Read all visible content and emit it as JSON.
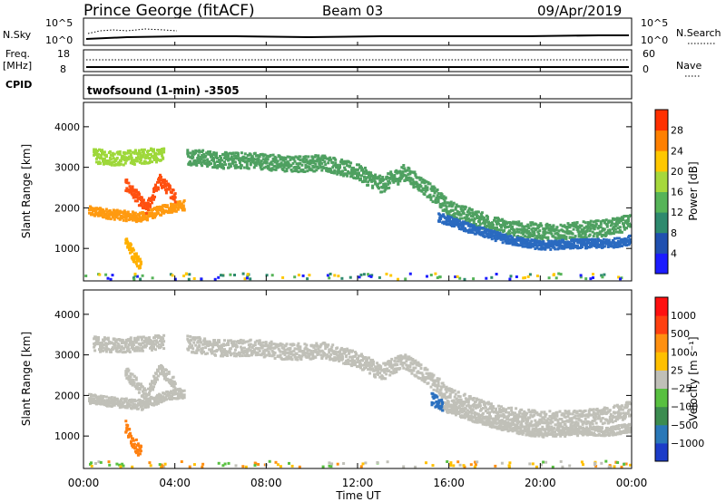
{
  "header": {
    "station": "Prince George (fitACF)",
    "beam": "Beam 03",
    "date": "09/Apr/2019"
  },
  "top_panels": {
    "nsky_label": "N.Sky",
    "nsky_top": "10^5",
    "nsky_bottom": "10^0",
    "nsearch_label": "N.Search",
    "nsearch_top": "10^5",
    "nsearch_bottom": "10^0",
    "freq_label": "Freq.",
    "freq_unit": "[MHz]",
    "freq_top": "18",
    "freq_bottom": "8",
    "nave_label": "Nave",
    "nave_top": "60",
    "nave_bottom": "0",
    "cpid_label": "CPID",
    "cpid_text": "twofsound (1-min)  -3505"
  },
  "colors": {
    "outline": "#000000",
    "velocity_ground": "#c0c0b8"
  },
  "chart_data": [
    {
      "type": "heatmap",
      "name": "power",
      "ylabel": "Slant Range [km]",
      "yticks": [
        "1000",
        "2000",
        "3000",
        "4000"
      ],
      "ylim": [
        200,
        4600
      ],
      "xlim": [
        0,
        24
      ],
      "colorbar_label": "Power [dB]",
      "colorbar_ticks": [
        "4",
        "8",
        "12",
        "16",
        "20",
        "24",
        "28"
      ],
      "colorbar_colors": [
        "#1c1cff",
        "#2050b0",
        "#2e8a6e",
        "#56b458",
        "#a6d83c",
        "#ffc800",
        "#ff8000",
        "#ff3000"
      ],
      "bands": [
        {
          "x": [
            0.2,
            1.5,
            2.5,
            3.5,
            4.4
          ],
          "y": [
            1950,
            1850,
            1800,
            2000,
            2100
          ],
          "width": 120,
          "level": "#ff9a10"
        },
        {
          "x": [
            0.4,
            1.5,
            2.5,
            3.5
          ],
          "y": [
            3300,
            3250,
            3300,
            3350
          ],
          "width": 180,
          "level": "#9ed83a"
        },
        {
          "x": [
            1.8,
            2.3,
            2.7,
            3.3,
            4.0
          ],
          "y": [
            2600,
            2300,
            2000,
            2700,
            2300
          ],
          "width": 150,
          "level": "#ff5010"
        },
        {
          "x": [
            1.8,
            2.1,
            2.5
          ],
          "y": [
            1250,
            900,
            600
          ],
          "width": 160,
          "level": "#ffb000"
        },
        {
          "x": [
            4.5,
            6.0,
            7.5,
            9.0,
            10.5,
            12.0,
            13.0,
            14.0,
            15.0,
            16.0,
            17.0,
            18.0,
            19.0,
            20.0,
            21.0,
            22.0,
            23.0,
            24.0
          ],
          "y": [
            3300,
            3200,
            3200,
            3100,
            3150,
            2900,
            2600,
            2900,
            2500,
            2000,
            1800,
            1600,
            1500,
            1450,
            1450,
            1500,
            1550,
            1700
          ],
          "width": 200,
          "level": "#4ea060"
        },
        {
          "x": [
            15.5,
            17.0,
            18.5,
            20.0,
            21.5,
            23.0,
            24.0
          ],
          "y": [
            1800,
            1500,
            1250,
            1100,
            1150,
            1150,
            1250
          ],
          "width": 110,
          "level": "#2a6ac0"
        }
      ],
      "noise_floor_km": 300
    },
    {
      "type": "heatmap",
      "name": "velocity",
      "ylabel": "Slant Range [km]",
      "yticks": [
        "1000",
        "2000",
        "3000",
        "4000"
      ],
      "ylim": [
        200,
        4600
      ],
      "xlim": [
        0,
        24
      ],
      "xlabel": "Time UT",
      "xticks": [
        "00:00",
        "04:00",
        "08:00",
        "12:00",
        "16:00",
        "20:00",
        "00:00"
      ],
      "colorbar_label": "Velocity [m s⁻¹]",
      "colorbar_ticks": [
        "1000",
        "500",
        "100",
        "25",
        "−25",
        "−100",
        "−500",
        "−1000"
      ],
      "colorbar_colors": [
        "#1c3cc8",
        "#2a78b8",
        "#3c8c50",
        "#58c040",
        "#c0c0b8",
        "#ffc000",
        "#ff9010",
        "#ff4010",
        "#ff1010"
      ],
      "bands": [
        {
          "x": [
            0.2,
            1.5,
            2.5,
            3.5,
            4.4
          ],
          "y": [
            1950,
            1850,
            1800,
            2000,
            2100
          ],
          "width": 120,
          "level": "#c0c0b8"
        },
        {
          "x": [
            0.4,
            1.5,
            2.5,
            3.5
          ],
          "y": [
            3300,
            3250,
            3300,
            3350
          ],
          "width": 180,
          "level": "#c0c0b8"
        },
        {
          "x": [
            1.8,
            2.3,
            2.7,
            3.3,
            4.0
          ],
          "y": [
            2600,
            2300,
            2000,
            2700,
            2300
          ],
          "width": 150,
          "level": "#c0c0b8"
        },
        {
          "x": [
            1.8,
            2.1,
            2.5
          ],
          "y": [
            1250,
            900,
            600
          ],
          "width": 160,
          "level": "#ff8010"
        },
        {
          "x": [
            4.5,
            6.0,
            7.5,
            9.0,
            10.5,
            12.0,
            13.0,
            14.0,
            15.0,
            16.0,
            17.0,
            18.0,
            19.0,
            20.0,
            21.0,
            22.0,
            23.0,
            24.0
          ],
          "y": [
            3300,
            3200,
            3200,
            3100,
            3150,
            2900,
            2600,
            2900,
            2500,
            2000,
            1800,
            1600,
            1500,
            1450,
            1450,
            1500,
            1550,
            1700
          ],
          "width": 200,
          "level": "#c0c0b8"
        },
        {
          "x": [
            15.5,
            17.0,
            18.5,
            20.0,
            21.5,
            23.0,
            24.0
          ],
          "y": [
            1800,
            1500,
            1250,
            1100,
            1150,
            1150,
            1250
          ],
          "width": 110,
          "level": "#c0c0b8"
        },
        {
          "x": [
            15.2,
            15.7
          ],
          "y": [
            1950,
            1750
          ],
          "width": 150,
          "level": "#2a70c0"
        }
      ],
      "noise_floor_km": 300
    }
  ]
}
